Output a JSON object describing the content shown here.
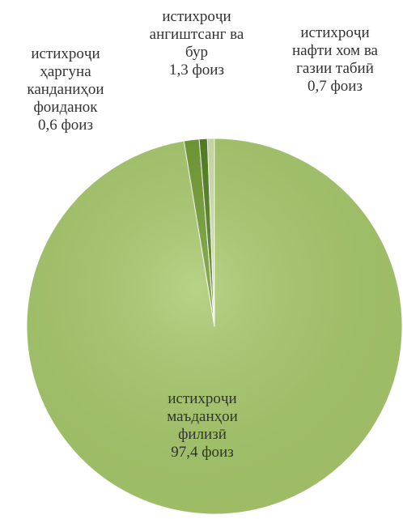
{
  "chart_data": {
    "type": "pie",
    "title": "",
    "start_angle_deg": 360,
    "direction": "clockwise",
    "slices": [
      {
        "label_lines": [
          "истихроҷи",
          "маъданҳои",
          "филизӣ"
        ],
        "value_text": "97,4 фоиз",
        "value": 97.4,
        "color": "#a7c96b"
      },
      {
        "label_lines": [
          "истихроҷи",
          "ангиштсанг ва",
          "бур"
        ],
        "value_text": "1,3 фоиз",
        "value": 1.3,
        "color": "#6e9a2e"
      },
      {
        "label_lines": [
          "истихроҷи",
          "нафти хом ва",
          "газии табиӣ"
        ],
        "value_text": "0,7 фоиз",
        "value": 0.7,
        "color": "#4f7d1c"
      },
      {
        "label_lines": [
          "истихроҷи",
          "ҳаргуна",
          "канданиҳои",
          "фоиданок"
        ],
        "value_text": "0,6 фоиз",
        "value": 0.6,
        "color": "#cfe1a6"
      }
    ]
  }
}
